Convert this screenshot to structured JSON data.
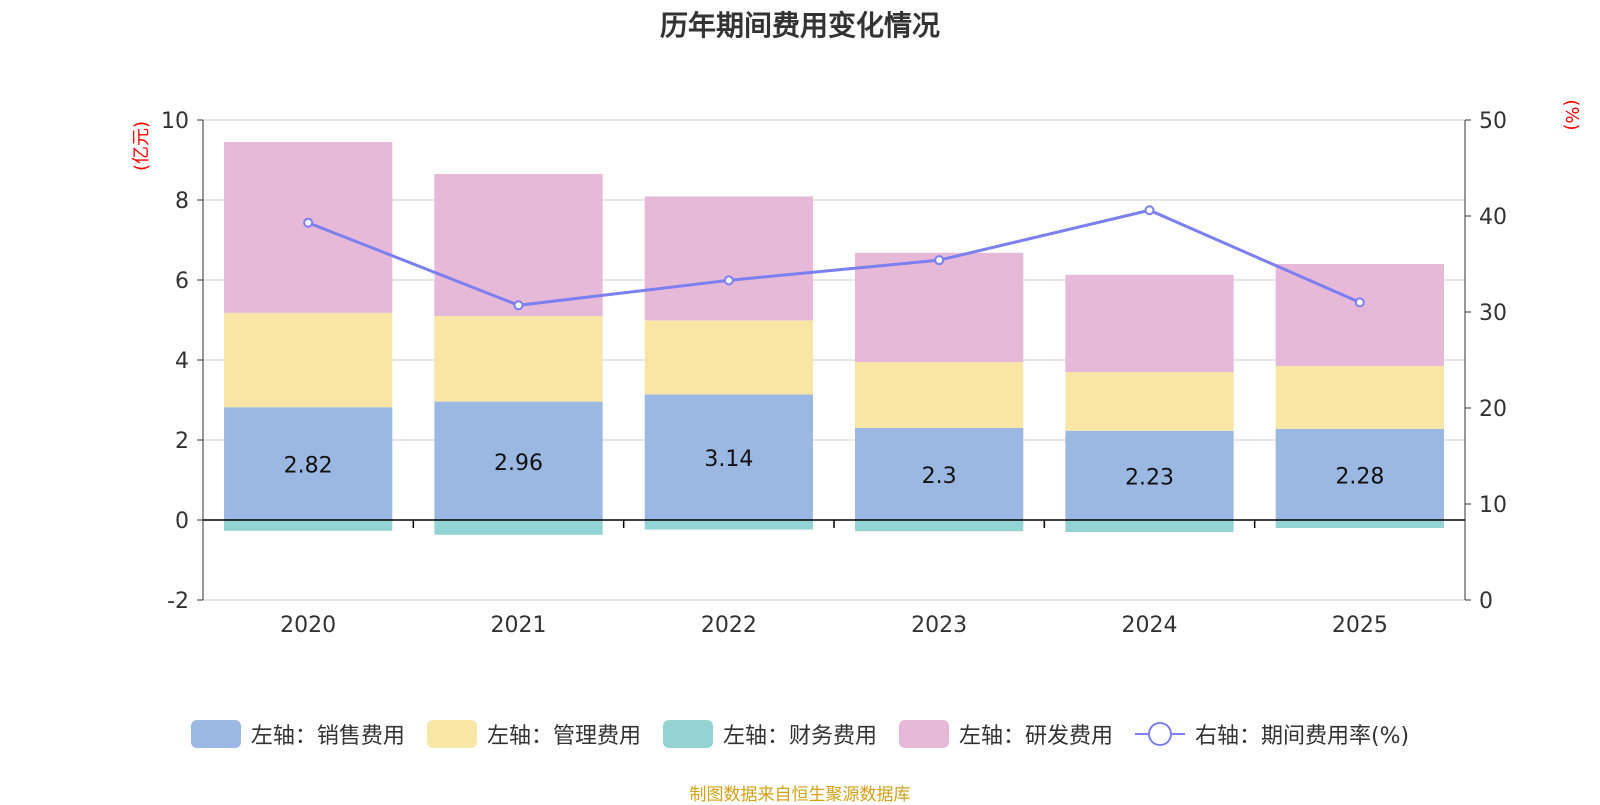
{
  "chart_data": {
    "type": "bar",
    "title": "历年期间费用变化情况",
    "categories": [
      "2020",
      "2021",
      "2022",
      "2023",
      "2024",
      "2025"
    ],
    "series": [
      {
        "name": "左轴：销售费用",
        "axis": "left",
        "color": "#9bb8e2",
        "values": [
          2.82,
          2.96,
          3.14,
          2.3,
          2.23,
          2.28
        ],
        "labels": [
          "2.82",
          "2.96",
          "3.14",
          "2.3",
          "2.23",
          "2.28"
        ]
      },
      {
        "name": "左轴：管理费用",
        "axis": "left",
        "color": "#f8e6a6",
        "values": [
          2.36,
          2.14,
          1.85,
          1.65,
          1.47,
          1.57
        ]
      },
      {
        "name": "左轴：财务费用",
        "axis": "left",
        "color": "#94d3d3",
        "values": [
          -0.27,
          -0.37,
          -0.24,
          -0.28,
          -0.3,
          -0.2
        ]
      },
      {
        "name": "左轴：研发费用",
        "axis": "left",
        "color": "#e6b9d9",
        "values": [
          4.27,
          3.55,
          3.1,
          2.73,
          2.43,
          2.55
        ]
      },
      {
        "name": "右轴：期间费用率(%)",
        "axis": "right",
        "type": "line",
        "color": "#7b7ff0",
        "values": [
          39.3,
          30.7,
          33.3,
          35.4,
          40.6,
          31.0
        ]
      }
    ],
    "y_left": {
      "label": "(亿元)",
      "ylim": [
        -2,
        10
      ],
      "ticks": [
        "-2",
        "0",
        "2",
        "4",
        "6",
        "8",
        "10"
      ]
    },
    "y_right": {
      "label": "(%)",
      "ylim": [
        0,
        50
      ],
      "ticks": [
        "0",
        "10",
        "20",
        "30",
        "40",
        "50"
      ]
    },
    "legend_position": "bottom",
    "grid": true
  },
  "source": "制图数据来自恒生聚源数据库"
}
